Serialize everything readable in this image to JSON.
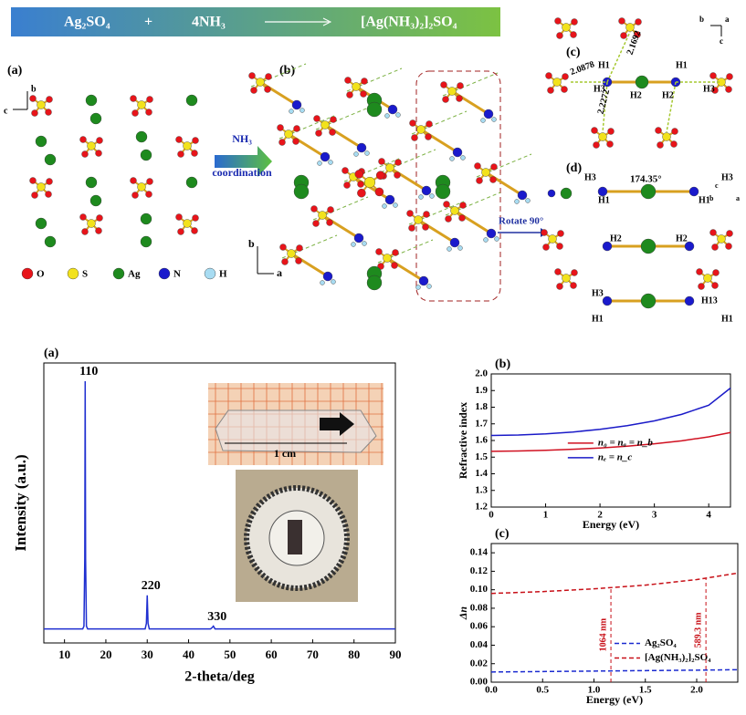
{
  "header": {
    "reactant_1": "Ag₂SO₄",
    "plus": "+",
    "reactant_2": "4NH₃",
    "product": "[Ag(NH₃)₂]₂SO₄"
  },
  "structure": {
    "panel_labels": [
      "(a)",
      "(b)",
      "(c)",
      "(d)"
    ],
    "legend": [
      "O",
      "S",
      "Ag",
      "N",
      "H"
    ],
    "arrow_label": [
      "NH₃",
      "coordination"
    ],
    "rotate_label": "Rotate 90°",
    "axes_a": [
      "b",
      "c"
    ],
    "axes_b": [
      "b",
      "a"
    ],
    "axes_c": [
      "b",
      "a",
      "c"
    ],
    "axes_d": [
      "c",
      "b",
      "a"
    ],
    "distances": [
      "2.0878",
      "2.1692",
      "2.2272"
    ],
    "angle": "174.35°",
    "atom_labels_c": [
      "H1",
      "H1",
      "H3",
      "H2",
      "H2",
      "H3"
    ],
    "atom_labels_d": [
      "H3",
      "H3",
      "H1",
      "H1",
      "H2",
      "H2",
      "H3",
      "H13",
      "H1",
      "H1"
    ]
  },
  "chart_data": [
    {
      "type": "line",
      "panel": "(a)",
      "xlabel": "2-theta/deg",
      "ylabel": "Intensity (a.u.)",
      "color": "#1f2fd0",
      "x": [
        5,
        14.4,
        14.7,
        14.9,
        15.0,
        15.1,
        15.3,
        15.6,
        29.5,
        29.8,
        30.0,
        30.2,
        30.5,
        45.3,
        45.7,
        46.0,
        46.4,
        90
      ],
      "values": [
        5,
        5,
        6,
        30,
        93.5,
        30,
        6,
        5,
        5,
        7,
        17,
        7,
        5,
        5,
        5.5,
        6,
        5,
        5
      ],
      "xlim": [
        5,
        90
      ],
      "xticks": [
        10,
        20,
        30,
        40,
        50,
        60,
        70,
        80,
        90
      ],
      "ylim": [
        0,
        100
      ],
      "annotations": [
        {
          "text": "110",
          "x": 15
        },
        {
          "text": "220",
          "x": 30
        },
        {
          "text": "330",
          "x": 46
        }
      ],
      "inset_label": "1 cm"
    },
    {
      "type": "line",
      "panel": "(b)",
      "xlabel": "Energy (eV)",
      "ylabel": "Refractive index",
      "legend": "upper center",
      "x": [
        0,
        0.5,
        1,
        1.5,
        2,
        2.5,
        3,
        3.5,
        4,
        4.4
      ],
      "series": [
        {
          "name": "n₀ = nₐ = n_b",
          "color": "#d01020",
          "values": [
            1.535,
            1.537,
            1.541,
            1.547,
            1.555,
            1.566,
            1.58,
            1.598,
            1.622,
            1.648
          ]
        },
        {
          "name": "nₑ = n_c",
          "color": "#1a1ac8",
          "values": [
            1.63,
            1.633,
            1.64,
            1.651,
            1.667,
            1.689,
            1.718,
            1.757,
            1.812,
            1.915
          ]
        }
      ],
      "xlim": [
        0,
        4.4
      ],
      "xticks": [
        0,
        1,
        2,
        3,
        4
      ],
      "ylim": [
        1.2,
        2.0
      ],
      "yticks": [
        1.2,
        1.3,
        1.4,
        1.5,
        1.6,
        1.7,
        1.8,
        1.9,
        {
          "value": 2,
          "label": "2.0"
        }
      ]
    },
    {
      "type": "line",
      "panel": "(c)",
      "xlabel": "Energy (eV)",
      "ylabel": "Δn",
      "legend": "center right",
      "line_style": "dashed",
      "x": [
        0,
        0.5,
        1,
        1.5,
        2,
        2.4
      ],
      "series": [
        {
          "name": "Ag₂SO₄",
          "color": "#1a2ad0",
          "values": [
            0.011,
            0.0115,
            0.012,
            0.0125,
            0.013,
            0.0135
          ]
        },
        {
          "name": "[Ag(NH₃)₂]₂SO₄",
          "color": "#c81018",
          "values": [
            0.096,
            0.098,
            0.101,
            0.105,
            0.111,
            0.118
          ]
        }
      ],
      "markers": [
        {
          "x": 1.165,
          "label": "1064 nm"
        },
        {
          "x": 2.09,
          "label": "589.3 nm"
        }
      ],
      "xlim": [
        0,
        2.4
      ],
      "xticks": [
        {
          "value": 0,
          "label": "0.0"
        },
        0.5,
        {
          "value": 1,
          "label": "1.0"
        },
        1.5,
        {
          "value": 2,
          "label": "2.0"
        }
      ],
      "ylim": [
        0,
        0.15
      ],
      "yticks": [
        {
          "value": 0,
          "label": "0.00"
        },
        0.02,
        0.04,
        0.06,
        0.08,
        {
          "value": 0.1,
          "label": "0.10"
        },
        0.12,
        0.14
      ]
    }
  ]
}
